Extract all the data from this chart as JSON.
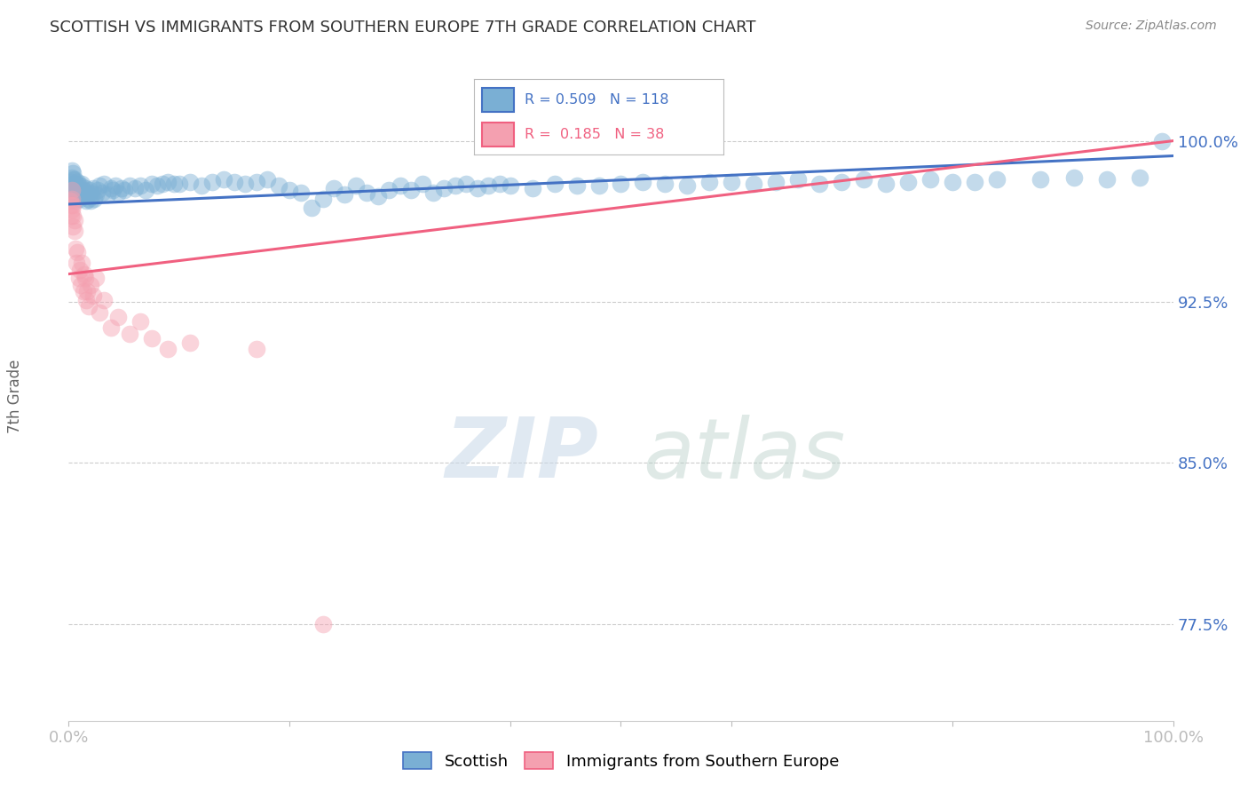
{
  "title": "SCOTTISH VS IMMIGRANTS FROM SOUTHERN EUROPE 7TH GRADE CORRELATION CHART",
  "source": "Source: ZipAtlas.com",
  "ylabel": "7th Grade",
  "y_ticks": [
    77.5,
    85.0,
    92.5,
    100.0
  ],
  "y_tick_labels": [
    "77.5%",
    "85.0%",
    "92.5%",
    "100.0%"
  ],
  "xlim": [
    0.0,
    1.0
  ],
  "ylim": [
    73.0,
    102.5
  ],
  "legend_blue_label": "Scottish",
  "legend_pink_label": "Immigrants from Southern Europe",
  "blue_R": 0.509,
  "blue_N": 118,
  "pink_R": 0.185,
  "pink_N": 38,
  "blue_color": "#7AAFD4",
  "pink_color": "#F4A0B0",
  "blue_line_color": "#4472C4",
  "pink_line_color": "#F06080",
  "blue_scatter_x": [
    0.001,
    0.002,
    0.002,
    0.003,
    0.003,
    0.003,
    0.004,
    0.004,
    0.004,
    0.005,
    0.005,
    0.005,
    0.006,
    0.006,
    0.007,
    0.007,
    0.008,
    0.008,
    0.009,
    0.01,
    0.01,
    0.011,
    0.011,
    0.012,
    0.012,
    0.013,
    0.014,
    0.015,
    0.015,
    0.016,
    0.017,
    0.018,
    0.019,
    0.02,
    0.02,
    0.021,
    0.022,
    0.023,
    0.025,
    0.026,
    0.028,
    0.03,
    0.032,
    0.035,
    0.038,
    0.04,
    0.042,
    0.045,
    0.048,
    0.05,
    0.055,
    0.06,
    0.065,
    0.07,
    0.075,
    0.08,
    0.085,
    0.09,
    0.095,
    0.1,
    0.11,
    0.12,
    0.13,
    0.14,
    0.15,
    0.16,
    0.17,
    0.18,
    0.19,
    0.2,
    0.21,
    0.22,
    0.23,
    0.24,
    0.25,
    0.26,
    0.27,
    0.28,
    0.29,
    0.3,
    0.31,
    0.32,
    0.33,
    0.34,
    0.35,
    0.36,
    0.37,
    0.38,
    0.39,
    0.4,
    0.42,
    0.44,
    0.46,
    0.48,
    0.5,
    0.52,
    0.54,
    0.56,
    0.58,
    0.6,
    0.62,
    0.64,
    0.66,
    0.68,
    0.7,
    0.72,
    0.74,
    0.76,
    0.78,
    0.8,
    0.82,
    0.84,
    0.88,
    0.91,
    0.94,
    0.97,
    0.99
  ],
  "blue_scatter_y": [
    97.8,
    97.5,
    98.1,
    97.9,
    98.3,
    98.6,
    98.0,
    98.2,
    98.5,
    97.4,
    97.8,
    98.2,
    97.2,
    97.9,
    97.5,
    98.0,
    97.7,
    98.1,
    97.9,
    97.3,
    97.7,
    97.4,
    97.9,
    97.6,
    98.0,
    97.7,
    97.6,
    97.4,
    97.8,
    97.2,
    97.5,
    97.3,
    97.7,
    97.2,
    97.6,
    97.4,
    97.8,
    97.3,
    97.5,
    97.7,
    97.9,
    97.6,
    98.0,
    97.5,
    97.8,
    97.7,
    97.9,
    97.6,
    97.8,
    97.7,
    97.9,
    97.8,
    97.9,
    97.7,
    98.0,
    97.9,
    98.0,
    98.1,
    98.0,
    98.0,
    98.1,
    97.9,
    98.1,
    98.2,
    98.1,
    98.0,
    98.1,
    98.2,
    97.9,
    97.7,
    97.6,
    96.9,
    97.3,
    97.8,
    97.5,
    97.9,
    97.6,
    97.4,
    97.7,
    97.9,
    97.7,
    98.0,
    97.6,
    97.8,
    97.9,
    98.0,
    97.8,
    97.9,
    98.0,
    97.9,
    97.8,
    98.0,
    97.9,
    97.9,
    98.0,
    98.1,
    98.0,
    97.9,
    98.1,
    98.1,
    98.0,
    98.1,
    98.2,
    98.0,
    98.1,
    98.2,
    98.0,
    98.1,
    98.2,
    98.1,
    98.1,
    98.2,
    98.2,
    98.3,
    98.2,
    98.3,
    100.0
  ],
  "pink_scatter_x": [
    0.001,
    0.002,
    0.002,
    0.003,
    0.003,
    0.003,
    0.004,
    0.004,
    0.004,
    0.005,
    0.005,
    0.006,
    0.007,
    0.008,
    0.009,
    0.01,
    0.011,
    0.012,
    0.013,
    0.014,
    0.015,
    0.016,
    0.017,
    0.018,
    0.02,
    0.022,
    0.025,
    0.028,
    0.032,
    0.038,
    0.045,
    0.055,
    0.065,
    0.075,
    0.09,
    0.11,
    0.17,
    0.23
  ],
  "pink_scatter_y": [
    97.2,
    96.5,
    97.0,
    96.8,
    97.3,
    97.7,
    96.0,
    96.5,
    97.0,
    95.8,
    96.3,
    95.0,
    94.3,
    94.8,
    93.6,
    94.0,
    93.3,
    94.3,
    93.0,
    93.8,
    93.6,
    92.6,
    93.0,
    92.3,
    93.3,
    92.8,
    93.6,
    92.0,
    92.6,
    91.3,
    91.8,
    91.0,
    91.6,
    90.8,
    90.3,
    90.6,
    90.3,
    77.5
  ],
  "blue_trendline_x0": 0.0,
  "blue_trendline_y0": 97.05,
  "blue_trendline_x1": 1.0,
  "blue_trendline_y1": 99.3,
  "pink_trendline_x0": 0.0,
  "pink_trendline_y0": 93.8,
  "pink_trendline_x1": 1.0,
  "pink_trendline_y1": 100.0,
  "watermark_zip": "ZIP",
  "watermark_atlas": "atlas",
  "grid_color": "#CCCCCC",
  "background_color": "#FFFFFF",
  "title_color": "#333333",
  "axis_label_color": "#666666",
  "tick_color_blue": "#4472C4",
  "source_color": "#888888"
}
